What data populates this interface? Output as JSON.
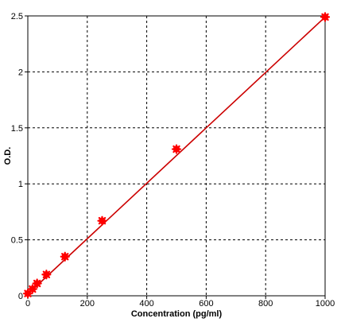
{
  "chart_data": {
    "type": "scatter",
    "title": "",
    "xlabel": "Concentration (pg/ml)",
    "ylabel": "O.D.",
    "xlim": [
      0,
      1000
    ],
    "ylim": [
      0,
      2.5
    ],
    "xticks": [
      0,
      200,
      400,
      600,
      800,
      1000
    ],
    "xtick_labels": [
      "0",
      "200",
      "400",
      "600",
      "800",
      "1000"
    ],
    "yticks": [
      0,
      0.5,
      1,
      1.5,
      2,
      2.5
    ],
    "ytick_labels": [
      "0",
      "0.5",
      "1",
      "1.5",
      "2",
      "2.5"
    ],
    "grid": true,
    "legend": "none",
    "series": [
      {
        "x": [
          0,
          15.6,
          31.2,
          62.5,
          125,
          250,
          500,
          1000
        ],
        "y": [
          0.02,
          0.06,
          0.11,
          0.19,
          0.35,
          0.67,
          1.31,
          2.49
        ]
      }
    ],
    "fit_line": {
      "x": [
        0,
        1000
      ],
      "y": [
        0.015,
        2.49
      ]
    },
    "colors": {
      "marker": "#ff0000",
      "line": "#cc0000",
      "grid": "#000000",
      "axis": "#000000",
      "background": "#ffffff"
    }
  }
}
